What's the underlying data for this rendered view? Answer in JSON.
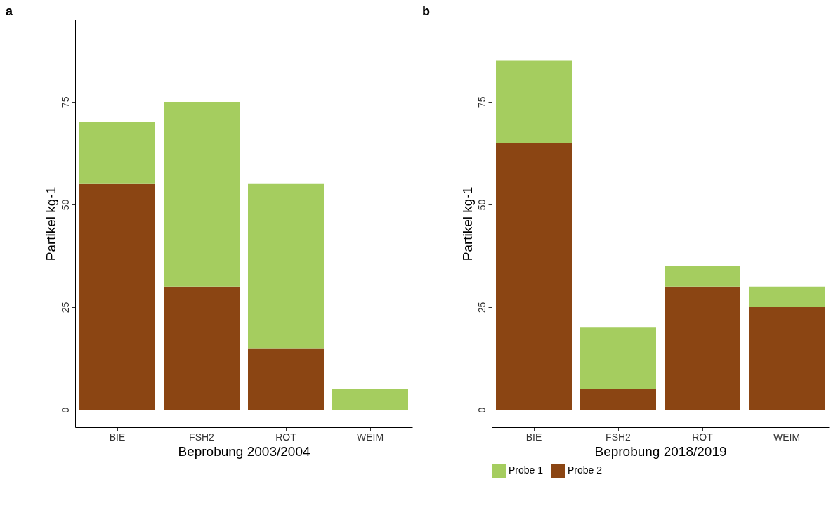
{
  "chart_data": [
    {
      "type": "bar",
      "title": "a",
      "xlabel": "Beprobung 2003/2004",
      "ylabel": "Partikel kg-1",
      "categories": [
        "BIE",
        "FSH2",
        "ROT",
        "WEIM"
      ],
      "stacked": true,
      "ylim": [
        -4.25,
        95
      ],
      "yticks": [
        0,
        25,
        50,
        75
      ],
      "grid": false,
      "series": [
        {
          "color": "#8b4513",
          "values": [
            55,
            30,
            15,
            0
          ]
        },
        {
          "color": "#a5cd5f",
          "values": [
            15,
            45,
            40,
            5
          ]
        }
      ]
    },
    {
      "type": "bar",
      "title": "b",
      "xlabel": "Beprobung 2018/2019",
      "ylabel": "Partikel kg-1",
      "categories": [
        "BIE",
        "FSH2",
        "ROT",
        "WEIM"
      ],
      "stacked": true,
      "ylim": [
        -4.25,
        95
      ],
      "yticks": [
        0,
        25,
        50,
        75
      ],
      "grid": false,
      "legend": "bottom",
      "series": [
        {
          "name": "Probe 2",
          "color": "#8b4513",
          "values": [
            65,
            5,
            30,
            25
          ]
        },
        {
          "name": "Probe 1",
          "color": "#a5cd5f",
          "values": [
            20,
            15,
            5,
            5
          ]
        }
      ]
    }
  ]
}
